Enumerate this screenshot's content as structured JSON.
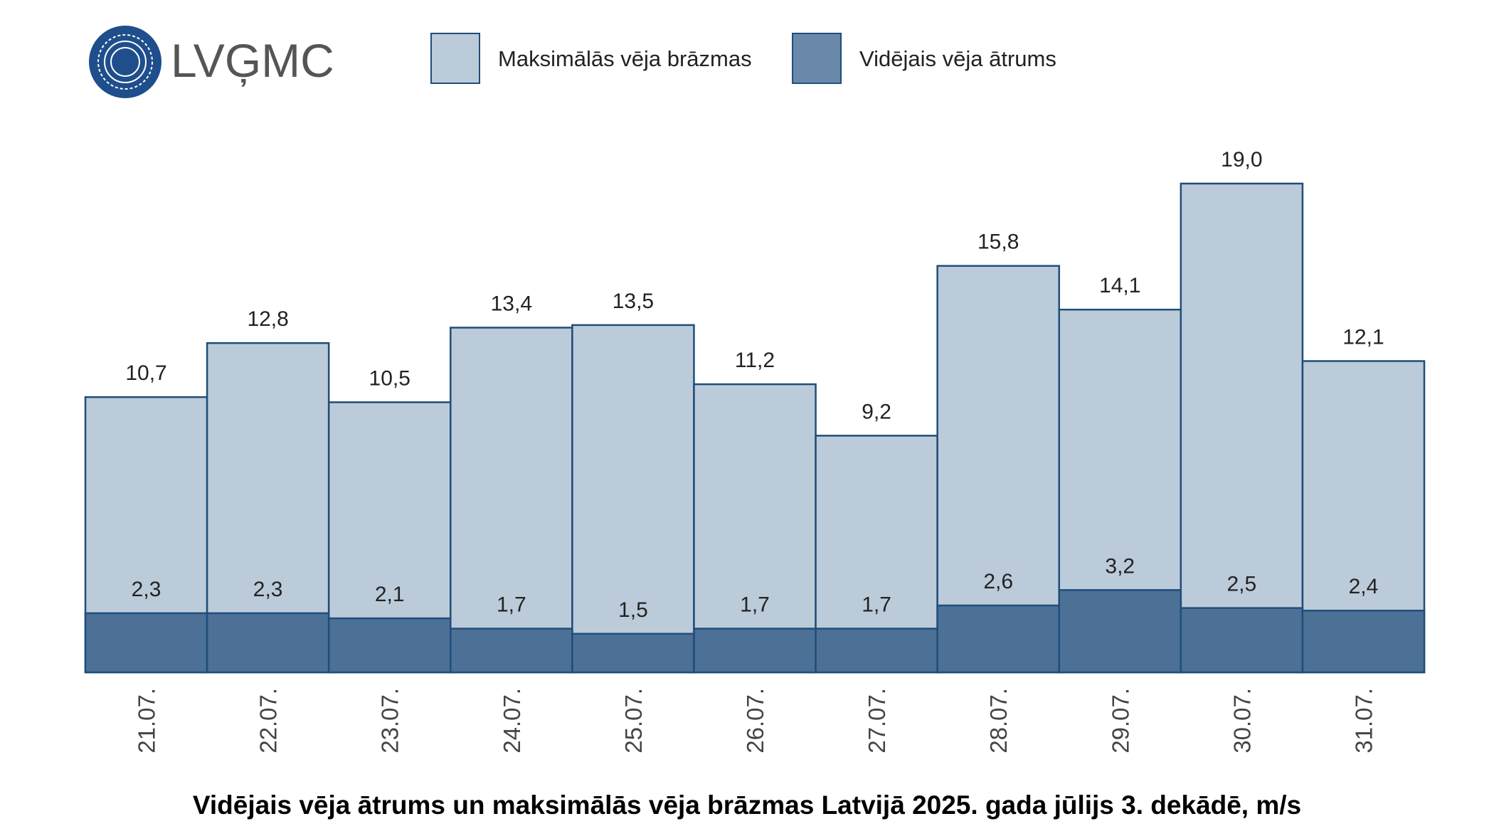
{
  "logo": {
    "text": "LVĢMC"
  },
  "chart_data": {
    "type": "overlap-bar",
    "title": "Vidējais vēja ātrums un maksimālās vēja brāzmas Latvijā 2025. gada jūlijs 3. dekādē, m/s",
    "categories": [
      "21.07.",
      "22.07.",
      "23.07.",
      "24.07.",
      "25.07.",
      "26.07.",
      "27.07.",
      "28.07.",
      "29.07.",
      "30.07.",
      "31.07."
    ],
    "series": [
      {
        "name": "Maksimālās vēja brāzmas",
        "color": "#bccbd9",
        "values": [
          10.7,
          12.8,
          10.5,
          13.4,
          13.5,
          11.2,
          9.2,
          15.8,
          14.1,
          19.0,
          12.1
        ],
        "value_labels": [
          "10,7",
          "12,8",
          "10,5",
          "13,4",
          "13,5",
          "11,2",
          "9,2",
          "15,8",
          "14,1",
          "19,0",
          "12,1"
        ]
      },
      {
        "name": "Vidējais vēja ātrums",
        "color": "#4d7097",
        "values": [
          2.3,
          2.3,
          2.1,
          1.7,
          1.5,
          1.7,
          1.7,
          2.6,
          3.2,
          2.5,
          2.4
        ],
        "value_labels": [
          "2,3",
          "2,3",
          "2,1",
          "1,7",
          "1,5",
          "1,7",
          "1,7",
          "2,6",
          "3,2",
          "2,5",
          "2,4"
        ]
      }
    ]
  }
}
